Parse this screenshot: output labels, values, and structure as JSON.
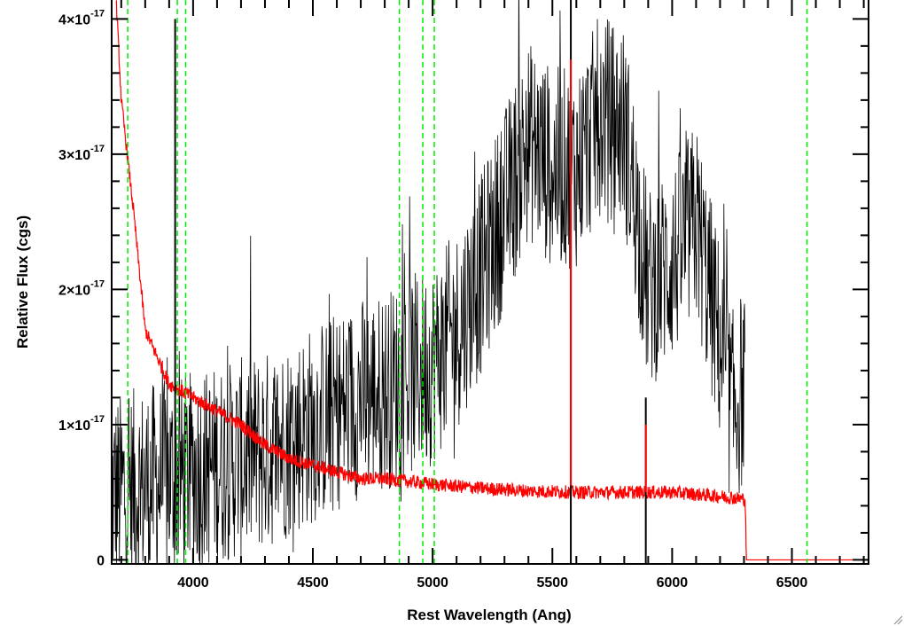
{
  "chart_data": {
    "type": "line",
    "xlabel": "Rest Wavelength (Ang)",
    "ylabel": "Relative Flux (cgs)",
    "xlim": [
      3660,
      6820
    ],
    "ylim": [
      -3e-19,
      4.14e-17
    ],
    "x_ticks": [
      {
        "value": 4000,
        "label": "4000"
      },
      {
        "value": 4500,
        "label": "4500"
      },
      {
        "value": 5000,
        "label": "5000"
      },
      {
        "value": 5500,
        "label": "5500"
      },
      {
        "value": 6000,
        "label": "6000"
      },
      {
        "value": 6500,
        "label": "6500"
      }
    ],
    "y_ticks": [
      {
        "value": 0,
        "label": "0",
        "mantissa": "",
        "exp": ""
      },
      {
        "value": 1e-17,
        "label": "1×10^-17",
        "mantissa": "1×10",
        "exp": "-17"
      },
      {
        "value": 2e-17,
        "label": "2×10^-17",
        "mantissa": "2×10",
        "exp": "-17"
      },
      {
        "value": 3e-17,
        "label": "3×10^-17",
        "mantissa": "3×10",
        "exp": "-17"
      },
      {
        "value": 4e-17,
        "label": "4×10^-17",
        "mantissa": "4×10",
        "exp": "-17"
      }
    ],
    "grid": false,
    "series": [
      {
        "color": "#000000",
        "noise_amplitude": 7.5e-18,
        "x": [
          3660,
          3700,
          3800,
          3900,
          4000,
          4100,
          4200,
          4300,
          4400,
          4500,
          4600,
          4700,
          4800,
          4900,
          5000,
          5100,
          5200,
          5300,
          5400,
          5500,
          5600,
          5700,
          5800,
          5900,
          6000,
          6100,
          6200,
          6250,
          6305
        ],
        "y": [
          5e-18,
          5e-18,
          5.5e-18,
          6e-18,
          6.5e-18,
          7e-18,
          7.5e-18,
          8e-18,
          9e-18,
          1e-17,
          1.1e-17,
          1.2e-17,
          1.25e-17,
          1.35e-17,
          1.45e-17,
          1.7e-17,
          2.1e-17,
          2.6e-17,
          3.1e-17,
          2.9e-17,
          2.9e-17,
          3.3e-17,
          3.2e-17,
          2e-17,
          2.2e-17,
          2.5e-17,
          1.6e-17,
          1.1e-17,
          1.3e-17
        ]
      },
      {
        "color": "#ff0000",
        "noise_amplitude": 5e-19,
        "x": [
          3680,
          3700,
          3750,
          3800,
          3850,
          3900,
          3950,
          4000,
          4100,
          4200,
          4300,
          4400,
          4500,
          4600,
          4700,
          4800,
          4900,
          5000,
          5200,
          5400,
          5600,
          5800,
          6000,
          6200,
          6300,
          6305,
          6310,
          6820
        ],
        "y": [
          4.1e-17,
          3.4e-17,
          2.6e-17,
          1.7e-17,
          1.5e-17,
          1.3e-17,
          1.25e-17,
          1.2e-17,
          1.1e-17,
          1e-17,
          8.5e-18,
          7.5e-18,
          7e-18,
          6.5e-18,
          6e-18,
          6e-18,
          5.8e-18,
          5.6e-18,
          5.3e-18,
          5.1e-18,
          5e-18,
          5e-18,
          5e-18,
          4.7e-18,
          4.5e-18,
          4.5e-18,
          0.0,
          0.0
        ]
      }
    ],
    "spikes": [
      {
        "x": 5577,
        "y_from": -3e-19,
        "y_to": 4.14e-17,
        "color": "#000000"
      },
      {
        "x": 5577,
        "y_from": 5.5e-18,
        "y_to": 3.7e-17,
        "color": "#ff0000"
      },
      {
        "x": 5890,
        "y_from": -3e-19,
        "y_to": 1.2e-17,
        "color": "#000000"
      },
      {
        "x": 5890,
        "y_from": 5e-18,
        "y_to": 1e-17,
        "color": "#ff0000"
      },
      {
        "x": 3925,
        "y_from": 2e-18,
        "y_to": 4e-17,
        "color": "#000000"
      }
    ],
    "vlines": [
      {
        "x": 3727,
        "color": "#00ee00",
        "style": "dashed"
      },
      {
        "x": 3934,
        "color": "#00ee00",
        "style": "dashed"
      },
      {
        "x": 3969,
        "color": "#00ee00",
        "style": "dashed"
      },
      {
        "x": 4861,
        "color": "#00ee00",
        "style": "dashed"
      },
      {
        "x": 4959,
        "color": "#00ee00",
        "style": "dashed"
      },
      {
        "x": 5007,
        "color": "#00ee00",
        "style": "dashed"
      },
      {
        "x": 6563,
        "color": "#00ee00",
        "style": "dashed"
      }
    ]
  }
}
